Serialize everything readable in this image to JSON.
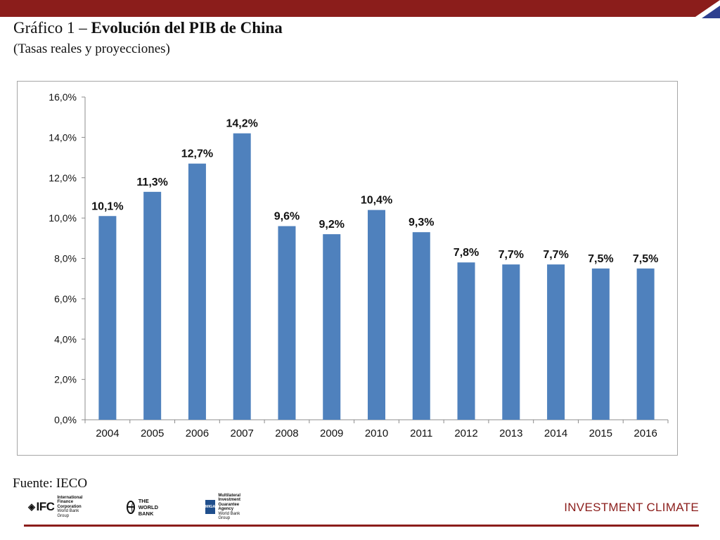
{
  "header": {
    "title_bold": "Evolución del PIB de China",
    "title_prefix": "Gráfico 1 – ",
    "subtitle": "(Tasas reales y proyecciones)"
  },
  "chart_data": {
    "type": "bar",
    "title": "",
    "xlabel": "",
    "ylabel": "",
    "categories": [
      "2004",
      "2005",
      "2006",
      "2007",
      "2008",
      "2009",
      "2010",
      "2011",
      "2012",
      "2013",
      "2014",
      "2015",
      "2016"
    ],
    "series": [
      {
        "values": [
          10.1,
          11.3,
          12.7,
          14.2,
          9.6,
          9.2,
          10.4,
          9.3,
          7.8,
          7.7,
          7.7,
          7.5,
          7.5
        ],
        "labels": [
          "10,1%",
          "11,3%",
          "12,7%",
          "14,2%",
          "9,6%",
          "9,2%",
          "10,4%",
          "9,3%",
          "7,8%",
          "7,7%",
          "7,7%",
          "7,5%",
          "7,5%"
        ]
      }
    ],
    "ylim": [
      0,
      16
    ],
    "yticks": [
      0,
      2,
      4,
      6,
      8,
      10,
      12,
      14,
      16
    ],
    "ytick_labels": [
      "0,0%",
      "2,0%",
      "4,0%",
      "6,0%",
      "8,0%",
      "10,0%",
      "12,0%",
      "14,0%",
      "16,0%"
    ],
    "grid": false,
    "legend": "none",
    "bar_color": "#4f81bd"
  },
  "footer": {
    "source": "Fuente: IECO",
    "logos": {
      "ifc_mark": "IFC",
      "ifc_line1": "International",
      "ifc_line2": "Finance Corporation",
      "ifc_line3": "World Bank Group",
      "worldbank": "THE WORLD BANK",
      "miga_mark": "MIGA",
      "miga_line1": "Multilateral Investment",
      "miga_line2": "Guarantee Agency",
      "miga_line3": "World Bank Group"
    },
    "brand": "INVESTMENT CLIMATE"
  },
  "colors": {
    "brand": "#8b1d1b",
    "bars": "#4f81bd",
    "accent_blue": "#2e3f8f"
  }
}
